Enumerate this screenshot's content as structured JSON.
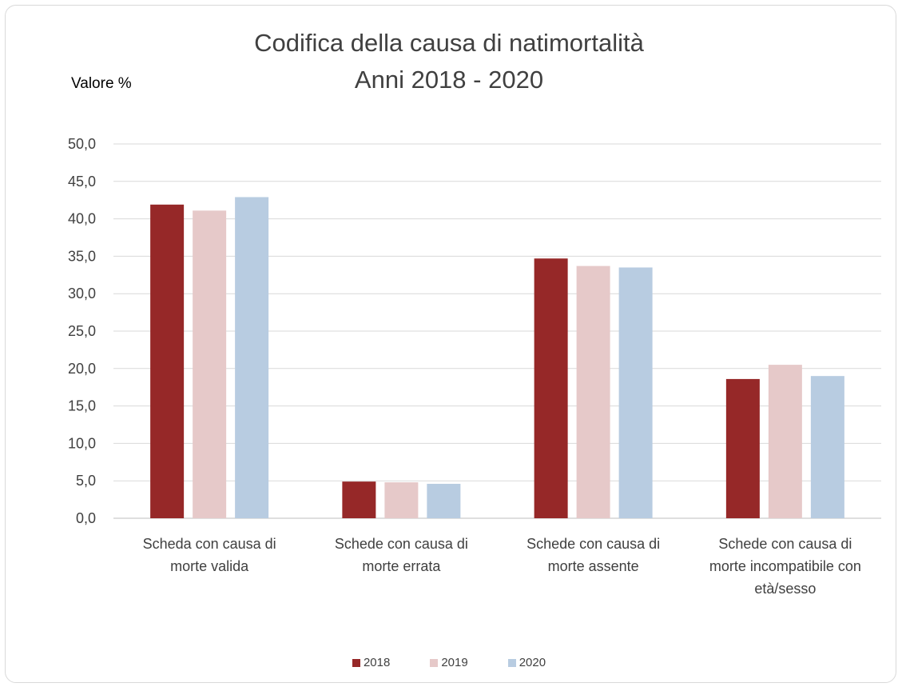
{
  "chart_data": {
    "type": "bar",
    "title": "Codifica della causa di natimortalità",
    "subtitle": "Anni 2018 - 2020",
    "ylabel": "Valore %",
    "xlabel": "",
    "ylim": [
      0,
      50
    ],
    "yticks": [
      "0,0",
      "5,0",
      "10,0",
      "15,0",
      "20,0",
      "25,0",
      "30,0",
      "35,0",
      "40,0",
      "45,0",
      "50,0"
    ],
    "grid": true,
    "legend_position": "bottom",
    "categories": [
      [
        "Scheda con causa di",
        "morte valida"
      ],
      [
        "Schede con causa di",
        "morte errata"
      ],
      [
        "Schede con causa di",
        "morte assente"
      ],
      [
        "Schede con causa di",
        "morte incompatibile con",
        "età/sesso"
      ]
    ],
    "series": [
      {
        "name": "2018",
        "color": "#962828",
        "values": [
          41.9,
          4.9,
          34.7,
          18.6
        ]
      },
      {
        "name": "2019",
        "color": "#e6c9c9",
        "values": [
          41.1,
          4.8,
          33.7,
          20.5
        ]
      },
      {
        "name": "2020",
        "color": "#b8cce1",
        "values": [
          42.9,
          4.6,
          33.5,
          19.0
        ]
      }
    ]
  }
}
